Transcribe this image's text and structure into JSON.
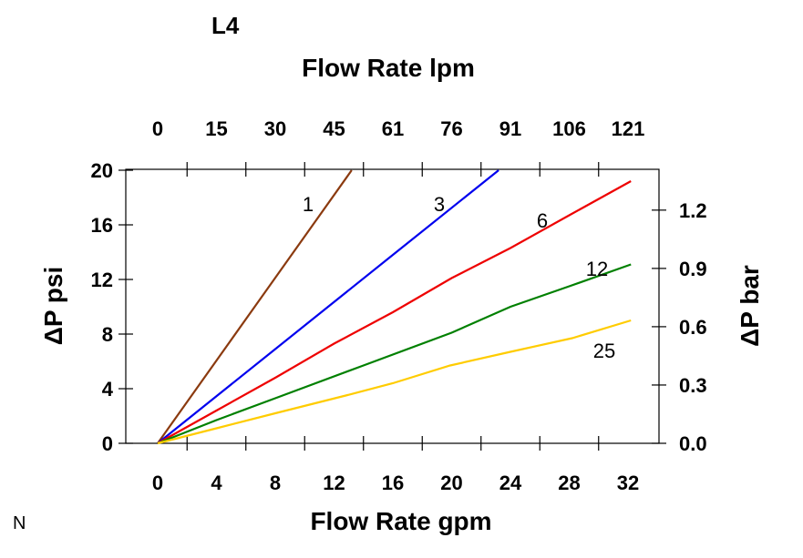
{
  "chart_data": {
    "type": "line",
    "title": "L4",
    "top_xlabel": "Flow Rate lpm",
    "xlabel": "Flow Rate gpm",
    "ylabel": "ΔP psi",
    "right_ylabel": "ΔP bar",
    "corner_label": "N",
    "xlim": [
      0,
      32
    ],
    "ylim": [
      0,
      20
    ],
    "xticks": [
      "0",
      "4",
      "8",
      "12",
      "16",
      "20",
      "24",
      "28",
      "32"
    ],
    "top_xticks": [
      "0",
      "15",
      "30",
      "45",
      "61",
      "76",
      "91",
      "106",
      "121"
    ],
    "yticks": [
      "0",
      "4",
      "8",
      "12",
      "16",
      "20"
    ],
    "right_yticks": [
      "0.0",
      "0.3",
      "0.6",
      "0.9",
      "1.2"
    ],
    "right_ytick_values": [
      0,
      0.3,
      0.6,
      0.9,
      1.2
    ],
    "right_ylim": [
      0,
      1.41
    ],
    "grid": false,
    "series": [
      {
        "name": "1",
        "color": "#8B3A0F",
        "x": [
          0,
          6.6,
          13.2
        ],
        "y": [
          0,
          10,
          20
        ]
      },
      {
        "name": "3",
        "color": "#0000EE",
        "x": [
          0,
          8,
          16,
          23.2
        ],
        "y": [
          0,
          6.9,
          13.8,
          20
        ]
      },
      {
        "name": "6",
        "color": "#EE0000",
        "x": [
          0,
          4,
          8,
          12,
          16,
          20,
          24,
          28,
          32.2
        ],
        "y": [
          0,
          2.4,
          4.8,
          7.3,
          9.6,
          12.1,
          14.3,
          16.7,
          19.2
        ]
      },
      {
        "name": "12",
        "color": "#008000",
        "x": [
          0,
          4,
          8,
          14,
          20,
          24,
          28,
          32.2
        ],
        "y": [
          0,
          1.7,
          3.3,
          5.7,
          8.1,
          10.0,
          11.5,
          13.1
        ]
      },
      {
        "name": "25",
        "color": "#FFCC00",
        "x": [
          0,
          4,
          8,
          12.8,
          16,
          19.9,
          24,
          28.2,
          32.2
        ],
        "y": [
          0,
          1.1,
          2.2,
          3.5,
          4.4,
          5.7,
          6.7,
          7.7,
          9.0
        ]
      }
    ]
  }
}
